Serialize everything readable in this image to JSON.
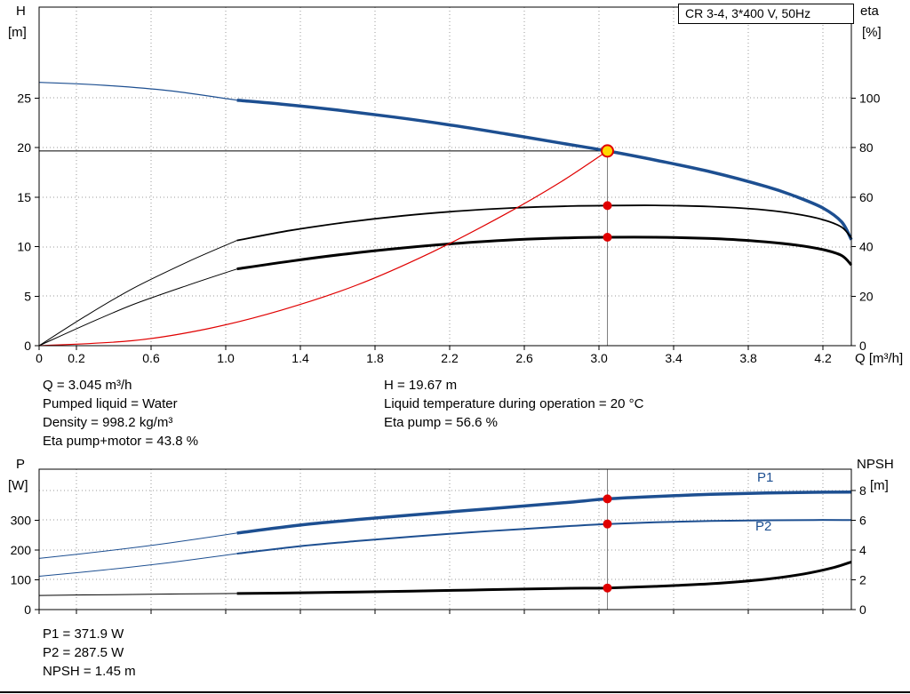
{
  "title_box": "CR 3-4, 3*400 V, 50Hz",
  "labels": {
    "h": "H",
    "h_unit": "[m]",
    "eta": "eta",
    "eta_unit": "[%]",
    "q_axis": "Q [m³/h]",
    "p": "P",
    "p_unit": "[W]",
    "npsh": "NPSH",
    "npsh_unit": "[m]",
    "p1": "P1",
    "p2": "P2"
  },
  "info_top_left": [
    "Q = 3.045 m³/h",
    "Pumped liquid = Water",
    "Density = 998.2 kg/m³",
    "Eta pump+motor = 43.8 %"
  ],
  "info_top_right": [
    "H = 19.67 m",
    "Liquid temperature during operation = 20 °C",
    "Eta pump = 56.6 %"
  ],
  "info_bottom": [
    "P1 = 371.9 W",
    "P2 = 287.5 W",
    "NPSH = 1.45 m"
  ],
  "colors": {
    "blue": "#1d4f91",
    "black": "#000000",
    "red": "#e00000",
    "yellow": "#ffd800",
    "grid": "#999999",
    "guide": "#808080"
  },
  "chart_data": [
    {
      "type": "line",
      "name": "head-efficiency-chart",
      "title": "CR 3-4, 3*400 V, 50Hz",
      "xlabel": "Q [m³/h]",
      "ylabel_left": "H [m]",
      "ylabel_right": "eta [%]",
      "xlim": [
        0,
        4.352
      ],
      "ylim_left": [
        0,
        34.2
      ],
      "ylim_right": [
        0,
        136.8
      ],
      "grid": true,
      "xtick_vals": [
        0,
        0.2,
        0.6,
        1.0,
        1.4,
        1.8,
        2.2,
        2.6,
        3.0,
        3.4,
        3.8,
        4.2
      ],
      "xtick_labels": [
        "0",
        "0.2",
        "0.6",
        "1.0",
        "1.4",
        "1.8",
        "2.2",
        "2.6",
        "3.0",
        "3.4",
        "3.8",
        "4.2"
      ],
      "ytick_left_vals": [
        0,
        5,
        10,
        15,
        20,
        25
      ],
      "ytick_right_vals": [
        0,
        20,
        40,
        60,
        80,
        100
      ],
      "series": [
        {
          "name": "pump-curve-lead",
          "axis": "left",
          "color": "blue",
          "width": 1.2,
          "points": [
            [
              0,
              26.6
            ],
            [
              0.35,
              26.3
            ],
            [
              0.7,
              25.75
            ],
            [
              1.06,
              24.8
            ]
          ]
        },
        {
          "name": "pump-curve",
          "axis": "left",
          "color": "blue",
          "width": 3.5,
          "points": [
            [
              1.06,
              24.8
            ],
            [
              1.3,
              24.4
            ],
            [
              1.6,
              23.8
            ],
            [
              1.9,
              23.1
            ],
            [
              2.2,
              22.3
            ],
            [
              2.5,
              21.4
            ],
            [
              2.8,
              20.45
            ],
            [
              3.045,
              19.67
            ],
            [
              3.3,
              18.75
            ],
            [
              3.6,
              17.55
            ],
            [
              3.9,
              16.05
            ],
            [
              4.05,
              15.1
            ],
            [
              4.2,
              13.9
            ],
            [
              4.3,
              12.5
            ],
            [
              4.352,
              10.7
            ]
          ]
        },
        {
          "name": "eta-pump-lead",
          "axis": "right",
          "color": "black",
          "width": 1,
          "points": [
            [
              0,
              0
            ],
            [
              0.25,
              12
            ],
            [
              0.5,
              23
            ],
            [
              0.8,
              34
            ],
            [
              1.06,
              42.5
            ]
          ]
        },
        {
          "name": "eta-pump",
          "axis": "right",
          "color": "black",
          "width": 1.8,
          "points": [
            [
              1.06,
              42.5
            ],
            [
              1.35,
              46.6
            ],
            [
              1.65,
              49.9
            ],
            [
              1.95,
              52.5
            ],
            [
              2.25,
              54.4
            ],
            [
              2.55,
              55.7
            ],
            [
              2.85,
              56.4
            ],
            [
              3.045,
              56.6
            ],
            [
              3.3,
              56.7
            ],
            [
              3.6,
              56.2
            ],
            [
              3.85,
              55.1
            ],
            [
              4.05,
              53.3
            ],
            [
              4.2,
              50.9
            ],
            [
              4.3,
              47.9
            ],
            [
              4.352,
              43.5
            ]
          ]
        },
        {
          "name": "eta-pump-motor-lead",
          "axis": "right",
          "color": "black",
          "width": 1,
          "points": [
            [
              0,
              0
            ],
            [
              0.25,
              8.5
            ],
            [
              0.5,
              16.5
            ],
            [
              0.8,
              24.5
            ],
            [
              1.06,
              31
            ]
          ]
        },
        {
          "name": "eta-pump-motor",
          "axis": "right",
          "color": "black",
          "width": 3,
          "points": [
            [
              1.06,
              31
            ],
            [
              1.35,
              34.2
            ],
            [
              1.65,
              37.1
            ],
            [
              1.95,
              39.5
            ],
            [
              2.25,
              41.4
            ],
            [
              2.55,
              42.8
            ],
            [
              2.85,
              43.6
            ],
            [
              3.045,
              43.8
            ],
            [
              3.3,
              43.8
            ],
            [
              3.6,
              43.3
            ],
            [
              3.85,
              42.2
            ],
            [
              4.05,
              40.7
            ],
            [
              4.2,
              38.8
            ],
            [
              4.3,
              36.4
            ],
            [
              4.352,
              32.6
            ]
          ]
        },
        {
          "name": "system-curve",
          "axis": "left",
          "color": "red",
          "width": 1.2,
          "points": [
            [
              0,
              0
            ],
            [
              0.5,
              0.5
            ],
            [
              0.9,
              1.7
            ],
            [
              1.3,
              3.6
            ],
            [
              1.7,
              6.1
            ],
            [
              2.1,
              9.4
            ],
            [
              2.5,
              13.3
            ],
            [
              2.8,
              16.6
            ],
            [
              3.045,
              19.67
            ]
          ]
        }
      ],
      "guides": [
        {
          "dir": "h",
          "axis": "left",
          "at": 19.67,
          "x1": 0,
          "x2": 3.045,
          "color": "black"
        },
        {
          "dir": "v",
          "axis": "left",
          "at": 3.045,
          "y1": 0,
          "y2": 19.67,
          "color": "guide"
        }
      ],
      "markers": [
        {
          "x": 3.045,
          "y": 19.67,
          "axis": "left",
          "kind": "duty"
        },
        {
          "x": 3.045,
          "y": 56.6,
          "axis": "right",
          "kind": "dot"
        },
        {
          "x": 3.045,
          "y": 43.8,
          "axis": "right",
          "kind": "dot"
        }
      ],
      "duty_point": {
        "q_m3h": 3.045,
        "h_m": 19.67,
        "eta_pump_pct": 56.6,
        "eta_pump_motor_pct": 43.8
      }
    },
    {
      "type": "line",
      "name": "power-npsh-chart",
      "title": "",
      "xlabel": "",
      "ylabel_left": "P [W]",
      "ylabel_right": "NPSH [m]",
      "xlim": [
        0,
        4.352
      ],
      "ylim_left": [
        0,
        471.6
      ],
      "ylim_right": [
        0,
        9.432
      ],
      "grid": true,
      "xtick_vals": [
        0,
        0.2,
        0.6,
        1.0,
        1.4,
        1.8,
        2.2,
        2.6,
        3.0,
        3.4,
        3.8,
        4.2
      ],
      "xtick_labels": [
        "0",
        "0.2",
        "0.6",
        "1.0",
        "1.4",
        "1.8",
        "2.2",
        "2.6",
        "3.0",
        "3.4",
        "3.8",
        "4.2"
      ],
      "ytick_left_vals": [
        0,
        100,
        200,
        300
      ],
      "ytick_right_vals": [
        0,
        2,
        4,
        6,
        8
      ],
      "series": [
        {
          "name": "p1-lead",
          "axis": "left",
          "color": "blue",
          "width": 1,
          "points": [
            [
              0,
              172
            ],
            [
              0.35,
              196
            ],
            [
              0.7,
              224
            ],
            [
              1.06,
              257
            ]
          ]
        },
        {
          "name": "p1",
          "axis": "left",
          "color": "blue",
          "width": 3.5,
          "points": [
            [
              1.06,
              257
            ],
            [
              1.4,
              284
            ],
            [
              1.7,
              302
            ],
            [
              2.0,
              318
            ],
            [
              2.3,
              333
            ],
            [
              2.6,
              348
            ],
            [
              2.85,
              361
            ],
            [
              3.045,
              371.9
            ],
            [
              3.3,
              380
            ],
            [
              3.6,
              387
            ],
            [
              3.9,
              391.5
            ],
            [
              4.15,
              394
            ],
            [
              4.352,
              395
            ]
          ]
        },
        {
          "name": "p2-lead",
          "axis": "left",
          "color": "blue",
          "width": 1,
          "points": [
            [
              0,
              112
            ],
            [
              0.35,
              133
            ],
            [
              0.7,
              158
            ],
            [
              1.06,
              188
            ]
          ]
        },
        {
          "name": "p2",
          "axis": "left",
          "color": "blue",
          "width": 2,
          "points": [
            [
              1.06,
              188
            ],
            [
              1.4,
              213
            ],
            [
              1.7,
              230
            ],
            [
              2.0,
              245
            ],
            [
              2.3,
              259
            ],
            [
              2.6,
              271
            ],
            [
              2.85,
              281
            ],
            [
              3.045,
              287.5
            ],
            [
              3.3,
              293
            ],
            [
              3.6,
              297.5
            ],
            [
              3.9,
              300
            ],
            [
              4.15,
              301
            ],
            [
              4.352,
              300.5
            ]
          ]
        },
        {
          "name": "npsh-lead",
          "axis": "right",
          "color": "black",
          "width": 1,
          "points": [
            [
              0,
              0.95
            ],
            [
              0.4,
              1.0
            ],
            [
              0.75,
              1.05
            ],
            [
              1.06,
              1.08
            ]
          ]
        },
        {
          "name": "npsh",
          "axis": "right",
          "color": "black",
          "width": 3,
          "points": [
            [
              1.06,
              1.08
            ],
            [
              1.4,
              1.13
            ],
            [
              1.7,
              1.18
            ],
            [
              2.0,
              1.24
            ],
            [
              2.3,
              1.31
            ],
            [
              2.6,
              1.38
            ],
            [
              2.85,
              1.43
            ],
            [
              3.045,
              1.45
            ],
            [
              3.3,
              1.56
            ],
            [
              3.6,
              1.74
            ],
            [
              3.9,
              2.05
            ],
            [
              4.1,
              2.4
            ],
            [
              4.25,
              2.8
            ],
            [
              4.352,
              3.2
            ]
          ]
        }
      ],
      "guides": [
        {
          "dir": "v",
          "at": 3.045,
          "full": true,
          "color": "guide"
        }
      ],
      "markers": [
        {
          "x": 3.045,
          "y": 371.9,
          "axis": "left",
          "kind": "dot"
        },
        {
          "x": 3.045,
          "y": 287.5,
          "axis": "left",
          "kind": "dot"
        },
        {
          "x": 3.045,
          "y": 1.45,
          "axis": "right",
          "kind": "dot"
        }
      ],
      "duty_point": {
        "q_m3h": 3.045,
        "p1_w": 371.9,
        "p2_w": 287.5,
        "npsh_m": 1.45
      }
    }
  ]
}
